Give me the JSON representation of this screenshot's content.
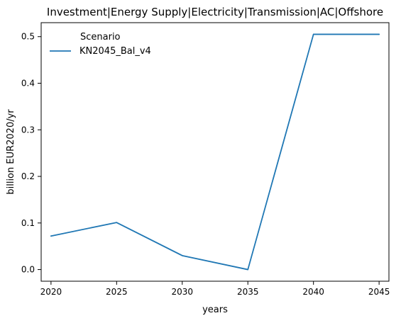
{
  "chart_data": {
    "type": "line",
    "title": "Investment|Energy Supply|Electricity|Transmission|AC|Offshore",
    "xlabel": "years",
    "ylabel": "billion EUR2020/yr",
    "x": [
      2020,
      2025,
      2030,
      2035,
      2040,
      2045
    ],
    "xticks": [
      "2020",
      "2025",
      "2030",
      "2035",
      "2040",
      "2045"
    ],
    "yticks": [
      "0.0",
      "0.1",
      "0.2",
      "0.3",
      "0.4",
      "0.5"
    ],
    "xlim": [
      2019.25,
      2045.75
    ],
    "ylim": [
      -0.025,
      0.53
    ],
    "grid": false,
    "legend": {
      "title": "Scenario",
      "placement": "top-left"
    },
    "series": [
      {
        "name": "KN2045_Bal_v4",
        "color": "#1f77b4",
        "values": [
          0.072,
          0.101,
          0.03,
          0.0,
          0.505,
          0.505
        ]
      }
    ]
  }
}
